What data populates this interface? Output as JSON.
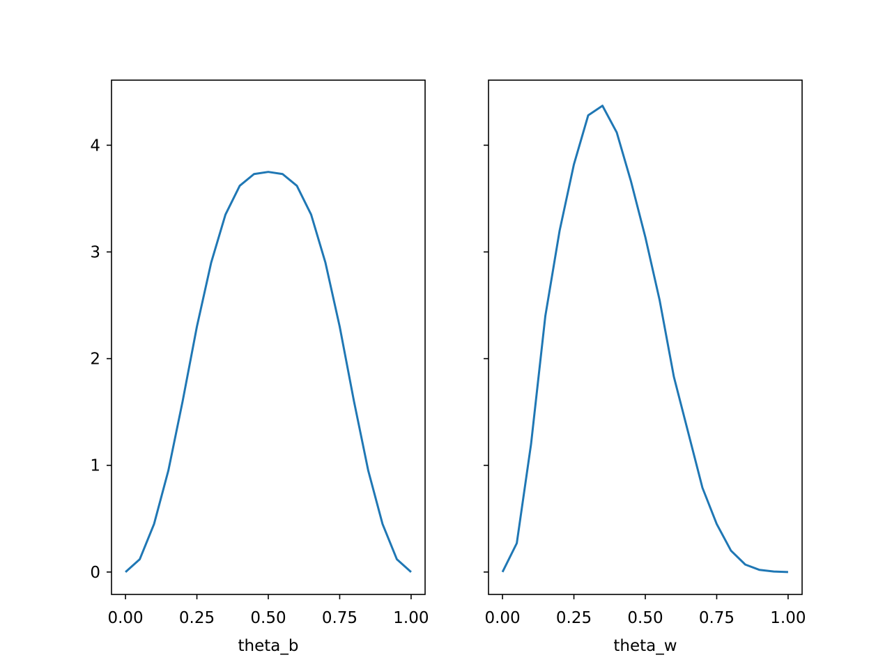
{
  "chart_data": [
    {
      "type": "line",
      "xlabel": "theta_b",
      "color": "#1f77b4",
      "x": [
        0,
        0.05,
        0.1,
        0.15,
        0.2,
        0.25,
        0.3,
        0.35,
        0.4,
        0.45,
        0.5,
        0.55,
        0.6,
        0.65,
        0.7,
        0.75,
        0.8,
        0.85,
        0.9,
        0.95,
        1
      ],
      "values": [
        0,
        0.12,
        0.45,
        0.95,
        1.6,
        2.3,
        2.9,
        3.35,
        3.62,
        3.73,
        3.75,
        3.73,
        3.62,
        3.35,
        2.9,
        2.3,
        1.6,
        0.95,
        0.45,
        0.12,
        0
      ],
      "xlim": [
        -0.049,
        1.049
      ],
      "ylim": [
        -0.21,
        4.61
      ],
      "xticks": [
        {
          "value": 0,
          "label": "0.00"
        },
        {
          "value": 0.25,
          "label": "0.25"
        },
        {
          "value": 0.5,
          "label": "0.50"
        },
        {
          "value": 0.75,
          "label": "0.75"
        },
        {
          "value": 1,
          "label": "1.00"
        }
      ],
      "yticks": [
        0,
        1,
        2,
        3,
        4
      ],
      "show_ytick_labels": true
    },
    {
      "type": "line",
      "xlabel": "theta_w",
      "color": "#1f77b4",
      "x": [
        0,
        0.05,
        0.1,
        0.15,
        0.2,
        0.25,
        0.3,
        0.35,
        0.4,
        0.45,
        0.5,
        0.55,
        0.6,
        0.65,
        0.7,
        0.75,
        0.8,
        0.85,
        0.9,
        0.95,
        1
      ],
      "values": [
        0,
        0.27,
        1.2,
        2.4,
        3.2,
        3.82,
        4.28,
        4.37,
        4.12,
        3.66,
        3.14,
        2.55,
        1.83,
        1.31,
        0.79,
        0.45,
        0.2,
        0.07,
        0.02,
        0.005,
        0
      ],
      "xlim": [
        -0.049,
        1.049
      ],
      "ylim": [
        -0.21,
        4.61
      ],
      "xticks": [
        {
          "value": 0,
          "label": "0.00"
        },
        {
          "value": 0.25,
          "label": "0.25"
        },
        {
          "value": 0.5,
          "label": "0.50"
        },
        {
          "value": 0.75,
          "label": "0.75"
        },
        {
          "value": 1,
          "label": "1.00"
        }
      ],
      "yticks": [
        0,
        1,
        2,
        3,
        4
      ],
      "show_ytick_labels": false
    }
  ]
}
